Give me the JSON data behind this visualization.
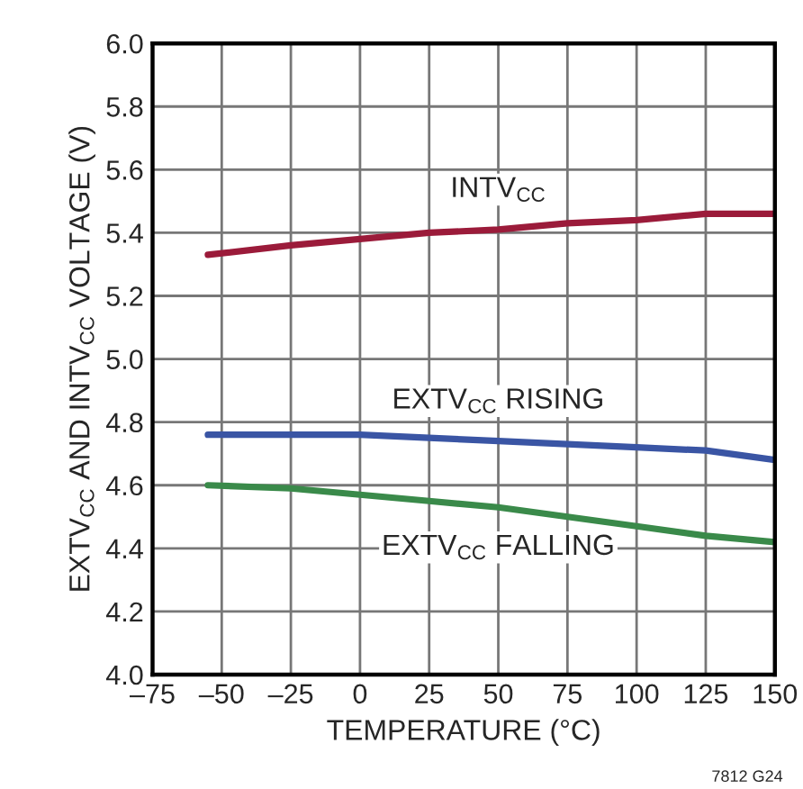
{
  "chart_data": {
    "type": "line",
    "xlabel": "TEMPERATURE (°C)",
    "ylabel": "EXTV$_{CC}$ AND INTV$_{CC}$ VOLTAGE (V)",
    "x": [
      -55,
      -25,
      0,
      25,
      50,
      75,
      100,
      125,
      150
    ],
    "series": [
      {
        "name": "INTV$_{CC}$",
        "color": "#9b1b3a",
        "values": [
          5.33,
          5.36,
          5.38,
          5.4,
          5.41,
          5.43,
          5.44,
          5.46,
          5.46
        ]
      },
      {
        "name": "EXTV$_{CC}$ RISING",
        "color": "#3a55a4",
        "values": [
          4.76,
          4.76,
          4.76,
          4.75,
          4.74,
          4.73,
          4.72,
          4.71,
          4.68
        ]
      },
      {
        "name": "EXTV$_{CC}$ FALLING",
        "color": "#3a8a4a",
        "values": [
          4.6,
          4.59,
          4.57,
          4.55,
          4.53,
          4.5,
          4.47,
          4.44,
          4.42
        ]
      }
    ],
    "xlim": [
      -75,
      150
    ],
    "xticks": [
      {
        "value": -75,
        "label": "–75"
      },
      {
        "value": -50,
        "label": "–50"
      },
      {
        "value": -25,
        "label": "–25"
      },
      0,
      25,
      50,
      75,
      100,
      125,
      150
    ],
    "ylim": [
      4.0,
      6.0
    ],
    "yticks": [
      {
        "value": 4.0,
        "label": "4.0"
      },
      4.2,
      4.4,
      4.6,
      4.8,
      {
        "value": 5.0,
        "label": "5.0"
      },
      5.2,
      5.4,
      5.6,
      5.8,
      {
        "value": 6.0,
        "label": "6.0"
      }
    ],
    "grid": true,
    "marker": "none",
    "line_style": "solid",
    "annotations": [
      "7812 G24"
    ]
  }
}
